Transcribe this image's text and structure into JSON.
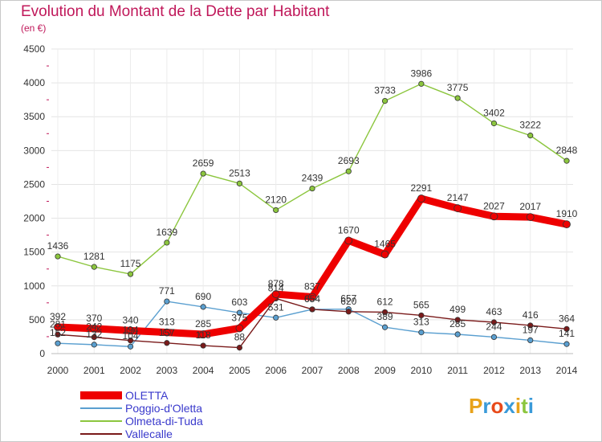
{
  "header": {
    "title": "Evolution du Montant de la Dette par Habitant",
    "subtitle": "(en €)"
  },
  "logo": {
    "text": "Proxiti",
    "letters": [
      "P",
      "r",
      "o",
      "x",
      "i",
      "t",
      "i"
    ],
    "colors": [
      "#e8a21a",
      "#3a9ad9",
      "#e84a1a",
      "#3a9ad9",
      "#e8a21a",
      "#8cc63e",
      "#3a9ad9"
    ]
  },
  "colors": {
    "title": "#c0185a",
    "axis_text": "#333333",
    "grid": "#e0e0e0",
    "legend_text": "#3a3acc"
  },
  "chart_data": {
    "type": "line",
    "title": "Evolution du Montant de la Dette par Habitant",
    "subtitle": "(en €)",
    "xlabel": "",
    "ylabel": "",
    "x": [
      "2000",
      "2001",
      "2002",
      "2003",
      "2004",
      "2005",
      "2006",
      "2007",
      "2008",
      "2009",
      "2010",
      "2011",
      "2012",
      "2013",
      "2014"
    ],
    "ylim": [
      0,
      4500
    ],
    "yticks": [
      0,
      500,
      1000,
      1500,
      2000,
      2500,
      3000,
      3500,
      4000,
      4500
    ],
    "grid": true,
    "legend_position": "bottom-left",
    "series": [
      {
        "name": "OLETTA",
        "color": "#ee0000",
        "values": [
          392,
          370,
          340,
          313,
          285,
          375,
          878,
          837,
          1670,
          1465,
          2291,
          2147,
          2027,
          2017,
          1910
        ],
        "labels": [
          "392",
          "370",
          "340",
          "313",
          "285",
          "375",
          "878",
          "837",
          "1670",
          "1465",
          "2291",
          "2147",
          "2027",
          "2017",
          "1910"
        ]
      },
      {
        "name": "Poggio-d'Oletta",
        "color": "#5a9fd0",
        "values": [
          152,
          132,
          104,
          771,
          690,
          603,
          531,
          654,
          657,
          389,
          313,
          285,
          244,
          197,
          141
        ],
        "labels": [
          "152",
          "132",
          "104",
          "771",
          "690",
          "603",
          "531",
          "654",
          "657",
          "389",
          "313",
          "285",
          "244",
          "197",
          "141"
        ]
      },
      {
        "name": "Olmeta-di-Tuda",
        "color": "#8cc63e",
        "values": [
          1436,
          1281,
          1175,
          1639,
          2659,
          2513,
          2120,
          2439,
          2693,
          3733,
          3986,
          3775,
          3402,
          3222,
          2848
        ],
        "labels": [
          "1436",
          "1281",
          "1175",
          "1639",
          "2659",
          "2513",
          "2120",
          "2439",
          "2693",
          "3733",
          "3986",
          "3775",
          "3402",
          "3222",
          "2848"
        ]
      },
      {
        "name": "Vallecalle",
        "color": "#7a1a1a",
        "values": [
          281,
          242,
          194,
          157,
          118,
          88,
          814,
          654,
          620,
          612,
          565,
          499,
          463,
          416,
          364
        ],
        "labels": [
          "281",
          "242",
          "194",
          "157",
          "118",
          "88",
          "814",
          "654",
          "620",
          "612",
          "565",
          "499",
          "463",
          "416",
          "364"
        ]
      }
    ]
  }
}
